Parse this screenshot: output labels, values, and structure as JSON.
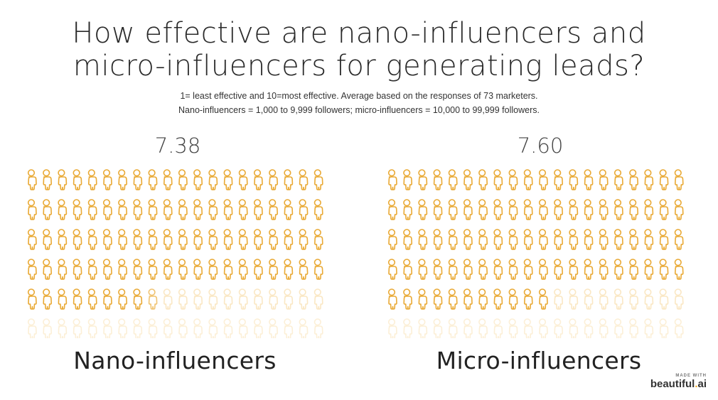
{
  "title_line1": "How effective are nano-influencers and",
  "title_line2": "micro-influencers for generating leads?",
  "subtitle_line1": "1= least effective and 10=most effective. Average based on the responses of 73 marketers.",
  "subtitle_line2": "Nano-influencers = 1,000 to 9,999 followers; micro-influencers = 10,000 to 99,999 followers.",
  "colors": {
    "filled": "#f0b445",
    "empty": "#f5e7cd",
    "filled_stroke": "#e9a934"
  },
  "icon": "person-icon",
  "chart_data": [
    {
      "type": "pictograph",
      "series_name": "Nano-influencers",
      "value": 7.38,
      "value_label": "7.38",
      "icons_total": 120,
      "icons_per_row": 20,
      "icons_filled": 88.5
    },
    {
      "type": "pictograph",
      "series_name": "Micro-influencers",
      "value": 7.6,
      "value_label": "7.60",
      "icons_total": 120,
      "icons_per_row": 20,
      "icons_filled": 91
    }
  ],
  "brand": {
    "made_with": "MADE WITH",
    "name": "beautiful",
    "dot": ".",
    "suffix": "ai"
  }
}
